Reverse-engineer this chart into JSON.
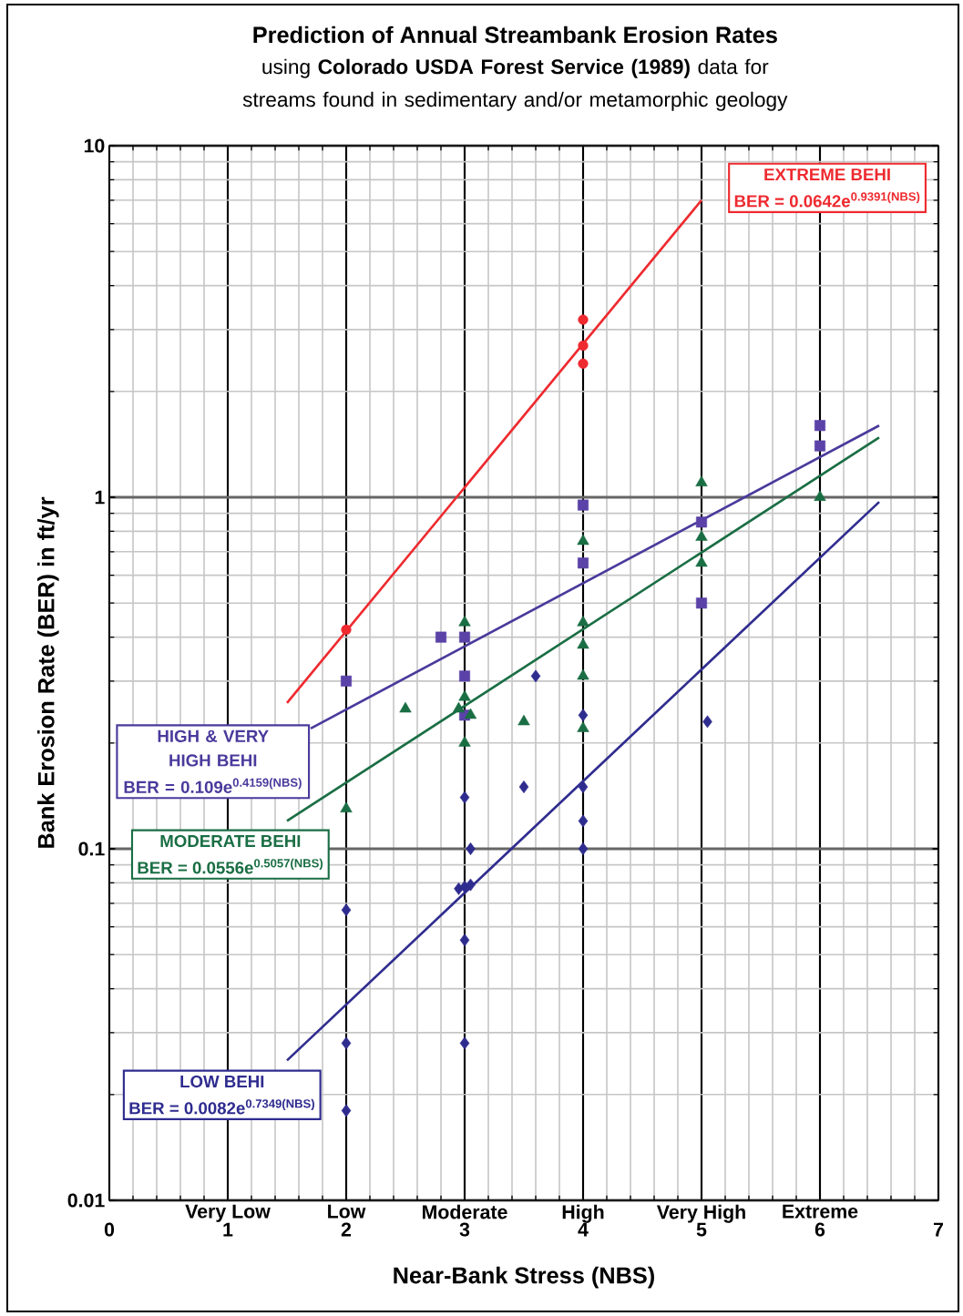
{
  "chart_data": {
    "type": "scatter",
    "title": "Prediction of Annual Streambank Erosion Rates",
    "subtitle": "using **Colorado USDA Forest Service (1989)** data for streams found in sedimentary and/or metamorphic geology",
    "xlabel": "Near-Bank Stress (NBS)",
    "ylabel": "Bank Erosion Rate (BER) in ft/yr",
    "xlim": [
      0,
      7
    ],
    "xticks": [
      0,
      1,
      2,
      3,
      4,
      5,
      6,
      7
    ],
    "ylim": [
      0.01,
      10
    ],
    "yticks": [
      0.01,
      0.1,
      1,
      10
    ],
    "log": "y",
    "grid": true,
    "series": [
      {
        "name": "EXTREME BEHI",
        "type": "line",
        "color": "#ee2a2f",
        "marker": "none",
        "x": [
          1.5,
          5
        ],
        "values": [
          0.26,
          7.0
        ]
      },
      {
        "type": "scatter",
        "color": "#ee2a2f",
        "marker": "circle",
        "x": [
          2,
          4,
          4,
          4
        ],
        "values": [
          0.42,
          3.2,
          2.7,
          2.4
        ]
      },
      {
        "name": "HIGH & VERY HIGH BEHI",
        "type": "line",
        "color": "#4a3a9c",
        "marker": "none",
        "x": [
          1.7,
          6.5
        ],
        "values": [
          0.22,
          1.6
        ]
      },
      {
        "type": "scatter",
        "color": "#5a42a8",
        "marker": "square",
        "x": [
          2,
          2.8,
          3,
          3,
          3,
          4,
          4,
          5,
          5,
          6,
          6
        ],
        "values": [
          0.3,
          0.4,
          0.4,
          0.31,
          0.24,
          0.95,
          0.65,
          0.85,
          0.5,
          1.6,
          1.4
        ]
      },
      {
        "name": "MODERATE BEHI",
        "type": "line",
        "color": "#1a6e44",
        "marker": "none",
        "x": [
          1.5,
          6.5
        ],
        "values": [
          0.12,
          1.48
        ]
      },
      {
        "type": "scatter",
        "color": "#1a6e44",
        "marker": "triangle",
        "x": [
          2,
          2.5,
          2.95,
          3,
          3,
          3.05,
          3,
          3.5,
          4,
          4,
          4,
          4,
          4,
          5,
          5,
          5,
          6
        ],
        "values": [
          0.13,
          0.25,
          0.25,
          0.44,
          0.27,
          0.24,
          0.2,
          0.23,
          0.75,
          0.44,
          0.38,
          0.31,
          0.22,
          1.1,
          0.77,
          0.65,
          1.0
        ]
      },
      {
        "name": "LOW BEHI",
        "type": "line",
        "color": "#2f2c8f",
        "marker": "none",
        "x": [
          1.5,
          6.5
        ],
        "values": [
          0.025,
          0.97
        ]
      },
      {
        "type": "scatter",
        "color": "#2f2c8f",
        "marker": "diamond",
        "x": [
          2,
          2,
          2,
          2.95,
          3,
          3.05,
          3,
          3,
          3,
          3.05,
          3.5,
          3.6,
          4,
          4,
          4,
          4,
          5.05
        ],
        "values": [
          0.067,
          0.028,
          0.018,
          0.077,
          0.078,
          0.079,
          0.055,
          0.028,
          0.14,
          0.1,
          0.15,
          0.31,
          0.24,
          0.15,
          0.12,
          0.1,
          0.23
        ]
      }
    ],
    "annotations": [
      "BER = 0.0642e$^{0.9391(NBS)}$",
      "BER = 0.109e$^{0.4159(NBS)}$",
      "BER = 0.0556e$^{0.5057(NBS)}$",
      "BER = 0.0082e$^{0.7349(NBS)}$",
      "Very Low",
      "Low",
      "Moderate",
      "High",
      "Very High",
      "Extreme"
    ]
  }
}
